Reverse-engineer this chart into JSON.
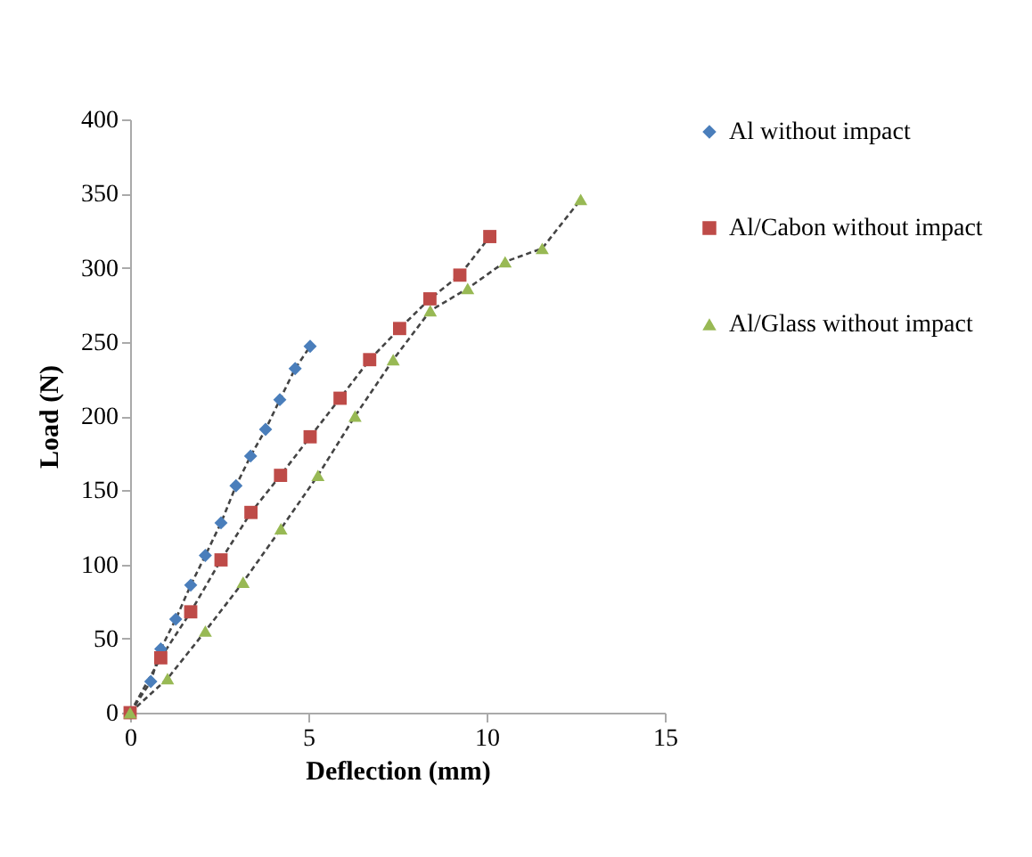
{
  "chart_data": {
    "type": "line",
    "xlabel": "Deflection (mm)",
    "ylabel": "Load (N)",
    "xlim": [
      0,
      15
    ],
    "xticks": [
      0,
      5,
      10,
      15
    ],
    "ylim": [
      0,
      400
    ],
    "yticks": [
      0,
      50,
      100,
      150,
      200,
      250,
      300,
      350,
      400
    ],
    "grid": false,
    "legend": "right",
    "line_style": "dashed",
    "series": [
      {
        "name": "Al without impact",
        "color": "#4a7ebb",
        "marker": "diamond",
        "x": [
          0,
          0.58,
          0.86,
          1.28,
          1.7,
          2.11,
          2.55,
          2.97,
          3.38,
          3.8,
          4.2,
          4.63,
          5.05
        ],
        "values": [
          0,
          21,
          43,
          63,
          86,
          106,
          128,
          153,
          173,
          191,
          211,
          232,
          247
        ]
      },
      {
        "name": "Al/Cabon without impact",
        "color": "#be4b48",
        "marker": "square",
        "x": [
          0,
          0.86,
          1.7,
          2.55,
          3.39,
          4.22,
          5.05,
          5.89,
          6.72,
          7.56,
          8.41,
          9.25,
          10.09
        ],
        "values": [
          0,
          37,
          68,
          103,
          135,
          160,
          186,
          212,
          238,
          259,
          279,
          295,
          321
        ]
      },
      {
        "name": "Al/Glass without impact",
        "color": "#98b954",
        "marker": "triangle",
        "x": [
          0,
          1.05,
          2.11,
          3.17,
          4.23,
          5.27,
          6.31,
          7.38,
          8.42,
          9.47,
          10.52,
          11.56,
          12.64
        ],
        "values": [
          0,
          23,
          55,
          88,
          124,
          160,
          200,
          238,
          271,
          286,
          304,
          313,
          346
        ]
      }
    ]
  }
}
